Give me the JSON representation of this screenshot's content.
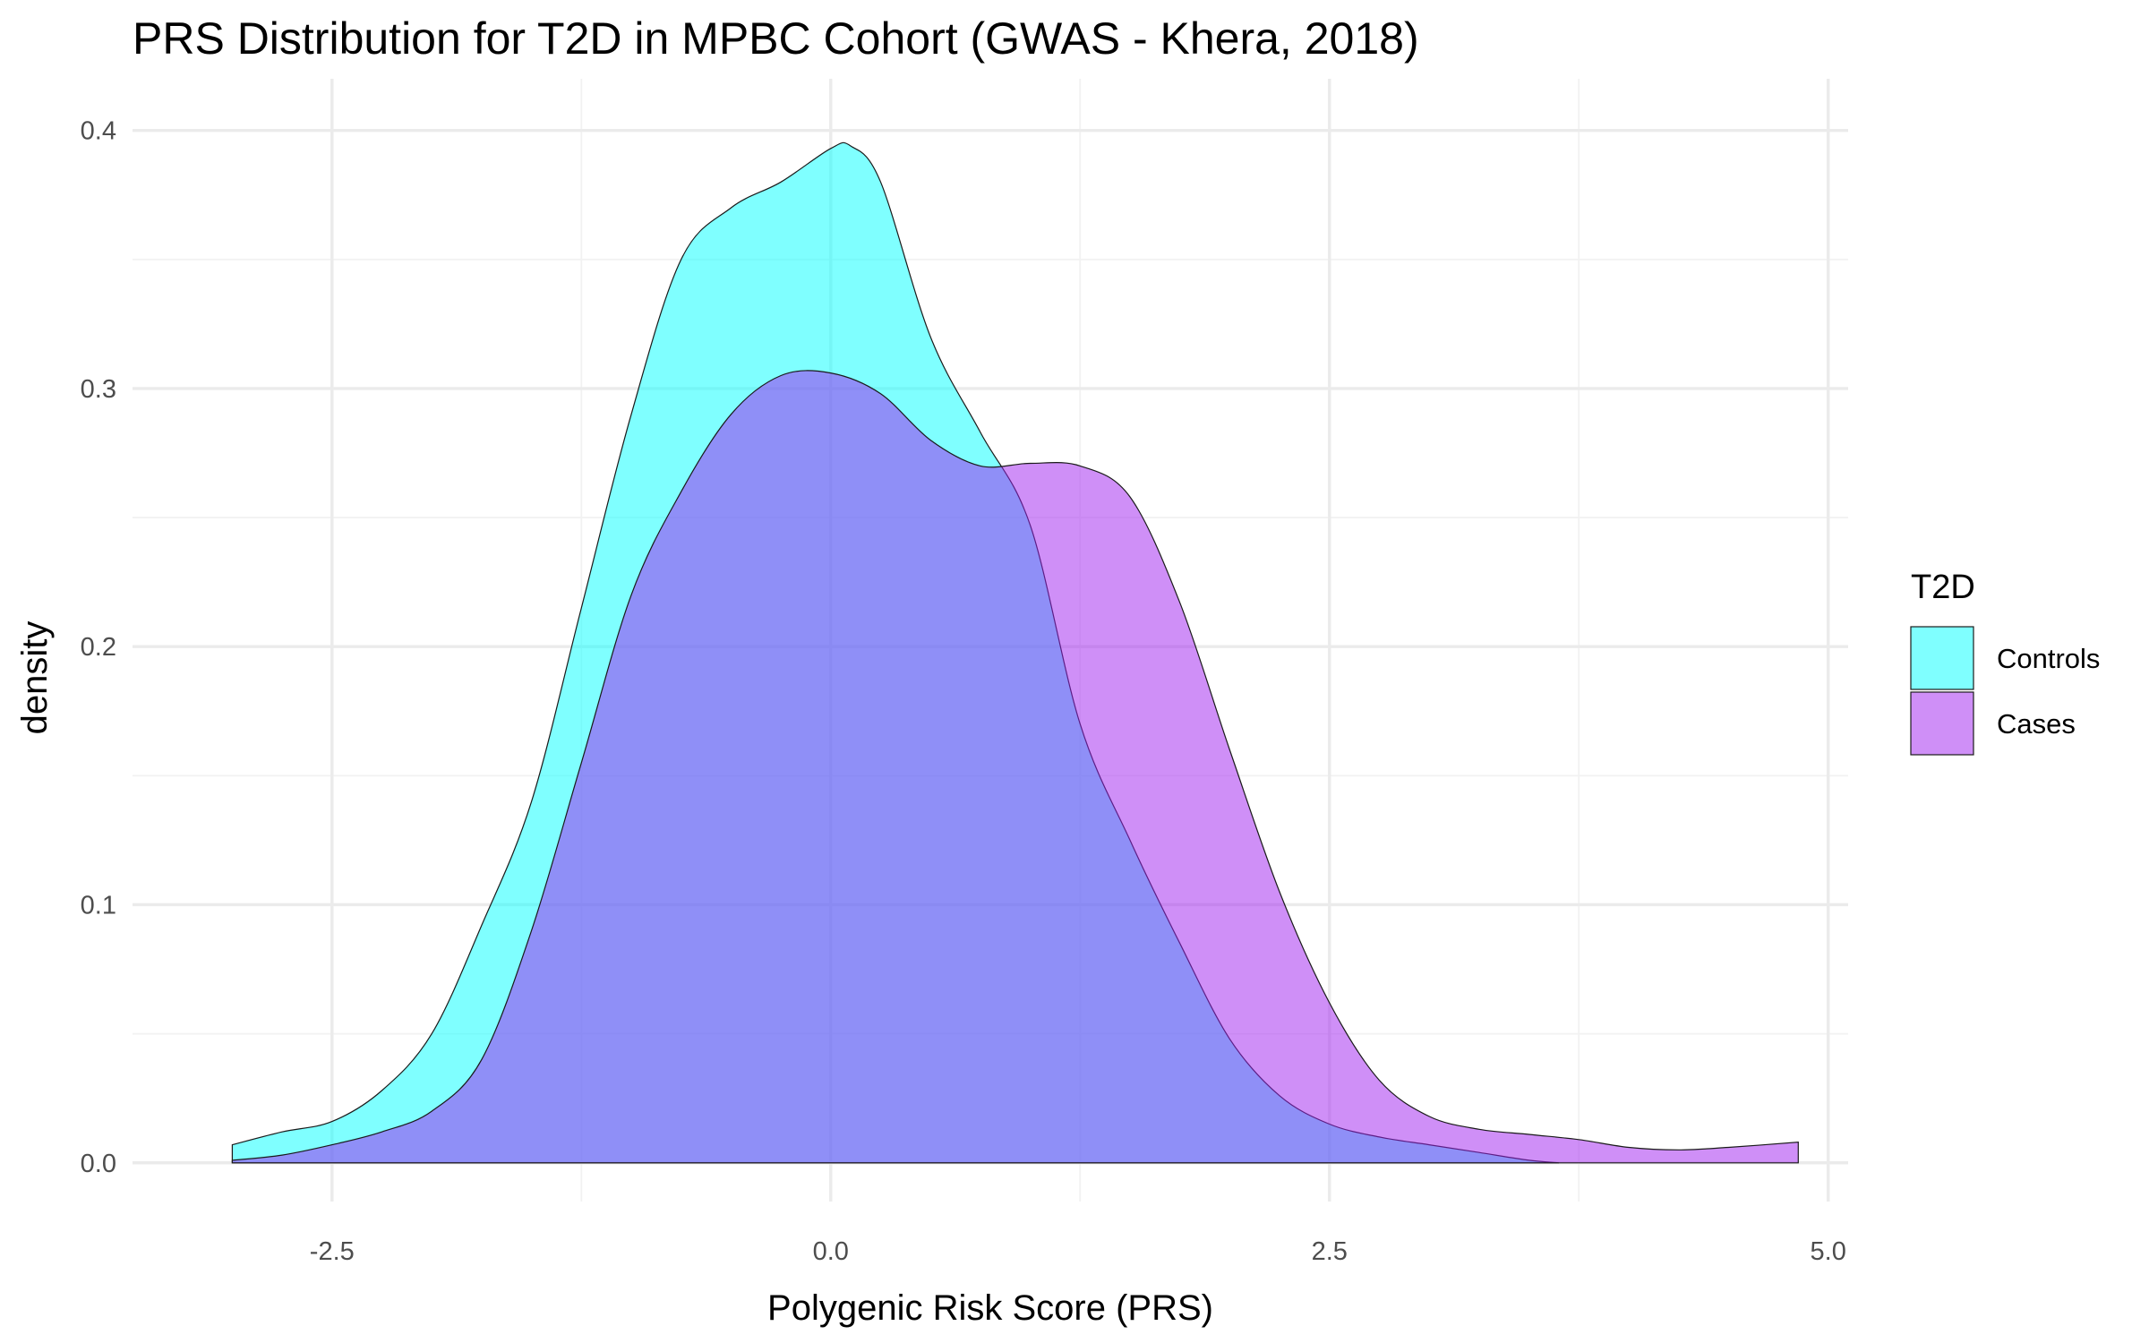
{
  "chart_data": {
    "type": "area",
    "title": "PRS Distribution for T2D in MPBC Cohort (GWAS - Khera, 2018)",
    "xlabel": "Polygenic Risk Score (PRS)",
    "ylabel": "density",
    "xlim": [
      -3.5,
      5.1
    ],
    "ylim": [
      -0.015,
      0.42
    ],
    "x_ticks": [
      -2.5,
      0.0,
      2.5,
      5.0
    ],
    "x_tick_labels": [
      "-2.5",
      "0.0",
      "2.5",
      "5.0"
    ],
    "y_ticks": [
      0.0,
      0.1,
      0.2,
      0.3,
      0.4
    ],
    "y_tick_labels": [
      "0.0",
      "0.1",
      "0.2",
      "0.3",
      "0.4"
    ],
    "grid": true,
    "legend": {
      "title": "T2D",
      "placement": "right"
    },
    "series": [
      {
        "name": "Controls",
        "color": "#00FFFF",
        "opacity": 0.5,
        "x": [
          -3.0,
          -2.75,
          -2.5,
          -2.25,
          -2.0,
          -1.75,
          -1.5,
          -1.25,
          -1.0,
          -0.75,
          -0.5,
          -0.25,
          0.0,
          0.1,
          0.25,
          0.5,
          0.75,
          1.0,
          1.25,
          1.5,
          1.75,
          2.0,
          2.25,
          2.5,
          2.75,
          3.0,
          3.25,
          3.5,
          3.65
        ],
        "y": [
          0.007,
          0.012,
          0.016,
          0.028,
          0.05,
          0.092,
          0.14,
          0.215,
          0.29,
          0.35,
          0.37,
          0.38,
          0.393,
          0.394,
          0.38,
          0.32,
          0.283,
          0.247,
          0.17,
          0.125,
          0.085,
          0.048,
          0.026,
          0.015,
          0.01,
          0.007,
          0.004,
          0.001,
          0.0
        ]
      },
      {
        "name": "Cases",
        "color": "#A020F0",
        "opacity": 0.5,
        "x": [
          -3.0,
          -2.75,
          -2.5,
          -2.25,
          -2.0,
          -1.75,
          -1.5,
          -1.25,
          -1.0,
          -0.75,
          -0.5,
          -0.25,
          0.0,
          0.25,
          0.5,
          0.75,
          1.0,
          1.25,
          1.5,
          1.75,
          2.0,
          2.25,
          2.5,
          2.75,
          3.0,
          3.25,
          3.5,
          3.75,
          4.0,
          4.25,
          4.5,
          4.85
        ],
        "y": [
          0.001,
          0.003,
          0.007,
          0.012,
          0.02,
          0.04,
          0.09,
          0.155,
          0.22,
          0.26,
          0.29,
          0.305,
          0.306,
          0.298,
          0.28,
          0.27,
          0.271,
          0.27,
          0.258,
          0.217,
          0.16,
          0.105,
          0.062,
          0.032,
          0.018,
          0.013,
          0.011,
          0.009,
          0.006,
          0.005,
          0.006,
          0.008
        ]
      }
    ]
  }
}
